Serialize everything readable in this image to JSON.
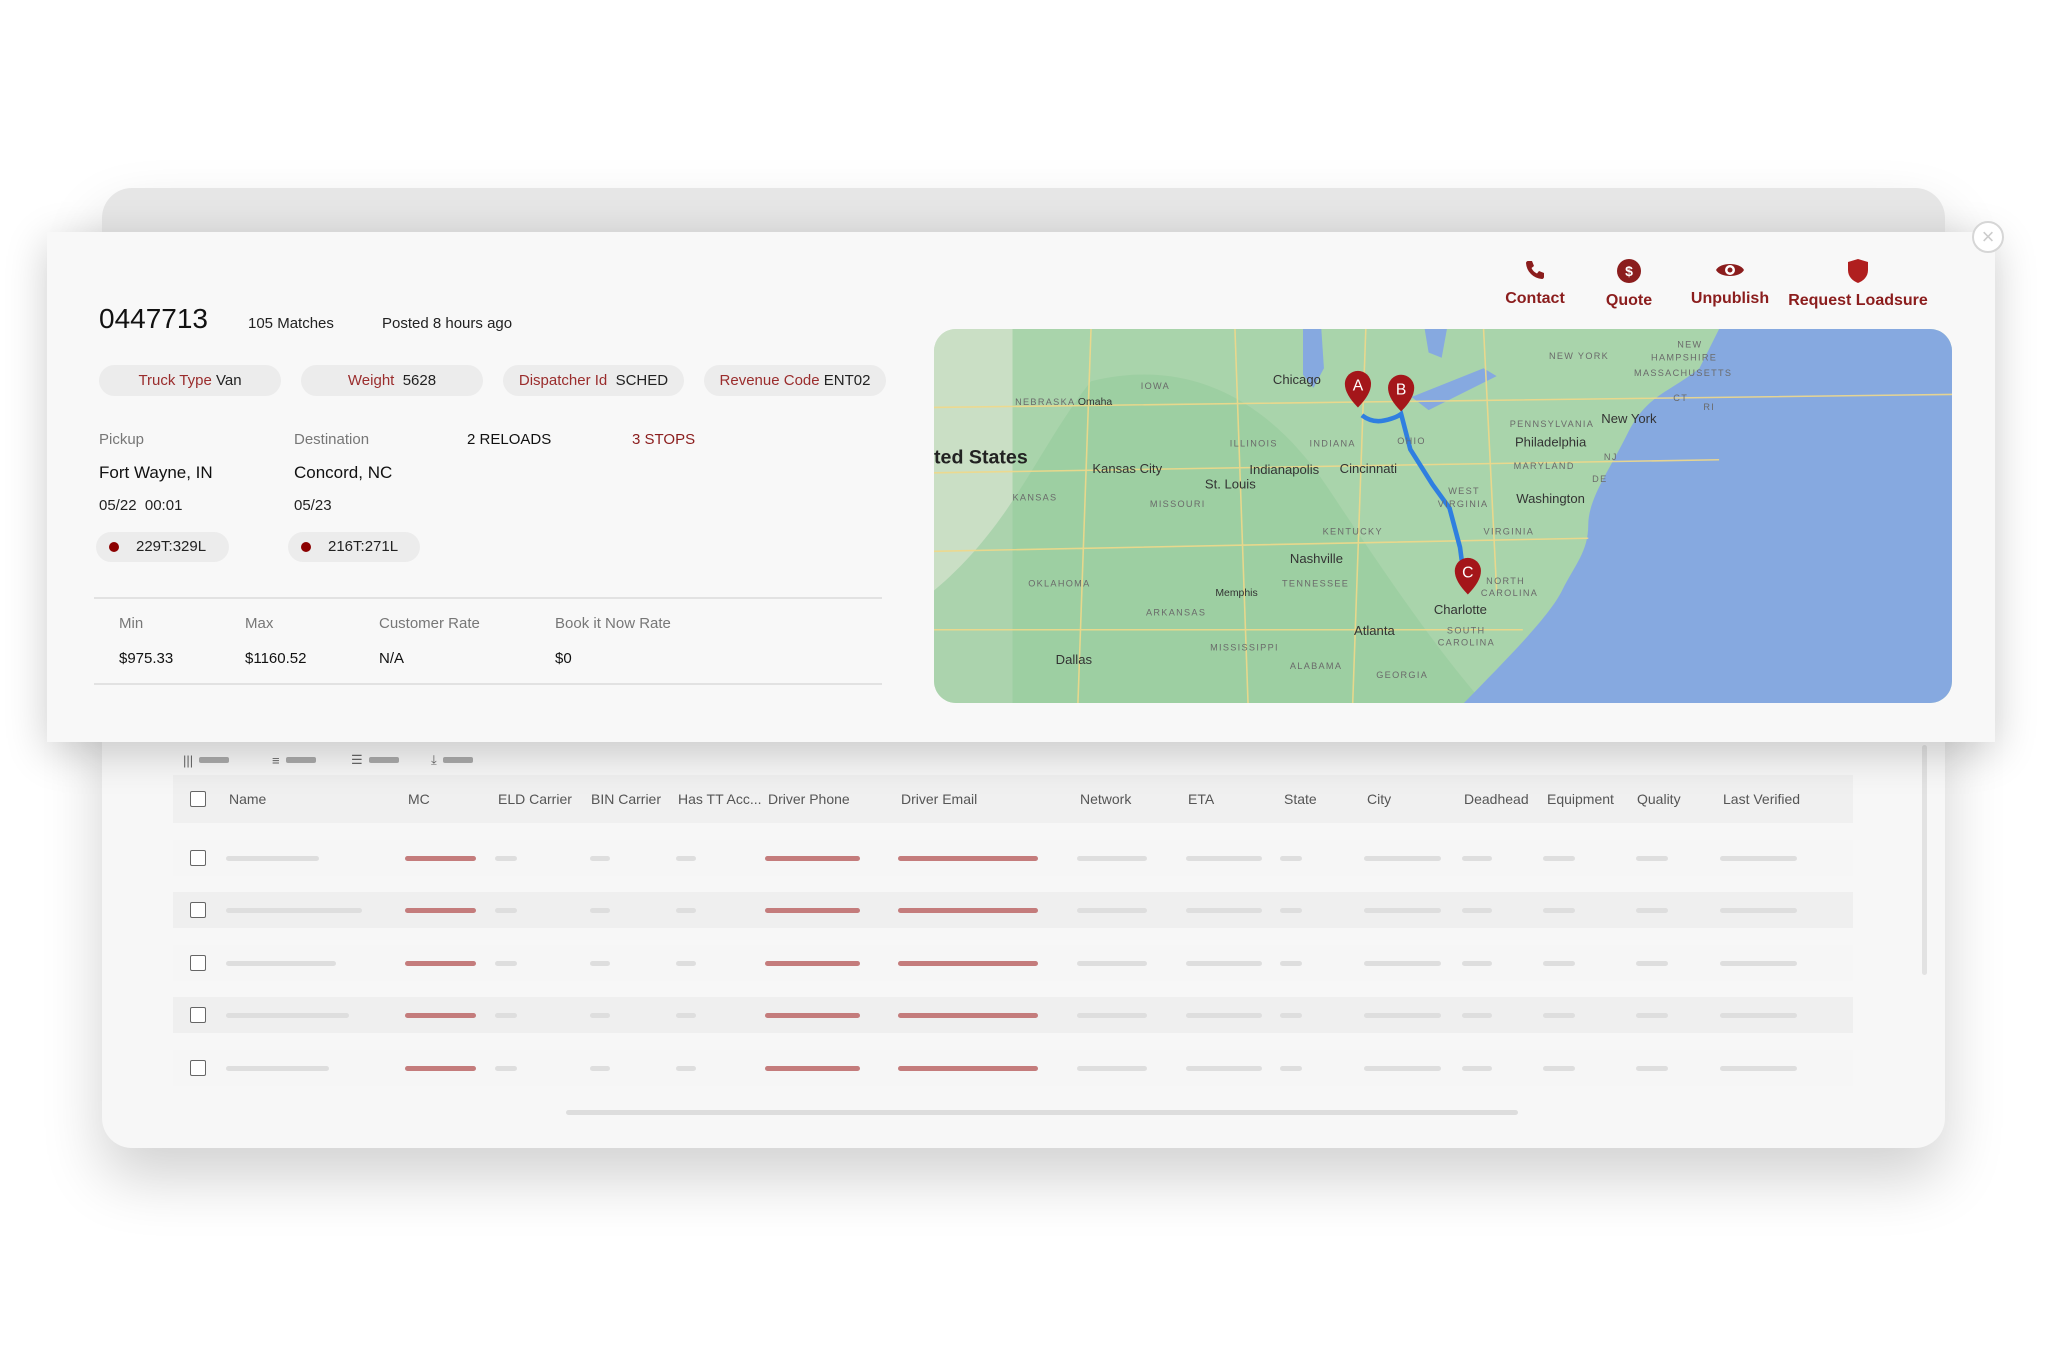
{
  "load": {
    "id": "0447713",
    "matches": "105 Matches",
    "posted": "Posted 8 hours ago",
    "chips": [
      {
        "key": "Truck Type",
        "value": "Van"
      },
      {
        "key": "Weight",
        "value": "5628"
      },
      {
        "key": "Dispatcher Id",
        "value": "SCHED"
      },
      {
        "key": "Revenue Code",
        "value": "ENT02"
      }
    ],
    "pickup": {
      "label": "Pickup",
      "city": "Fort Wayne, IN",
      "date": "05/22  00:01",
      "tag": "229T:329L"
    },
    "destination": {
      "label": "Destination",
      "city": "Concord, NC",
      "date": "05/23",
      "tag": "216T:271L"
    },
    "reloads": "2 RELOADS",
    "stops": "3 STOPS",
    "rates": [
      {
        "label": "Min",
        "value": "$975.33"
      },
      {
        "label": "Max",
        "value": "$1160.52"
      },
      {
        "label": "Customer Rate",
        "value": "N/A"
      },
      {
        "label": "Book it Now Rate",
        "value": "$0"
      }
    ]
  },
  "actions": [
    {
      "label": "Contact",
      "icon": "phone-icon"
    },
    {
      "label": "Quote",
      "icon": "dollar-icon"
    },
    {
      "label": "Unpublish",
      "icon": "eye-icon"
    },
    {
      "label": "Request Loadsure",
      "icon": "shield-icon"
    }
  ],
  "accent_color": "#8b1d1d",
  "map": {
    "country_label": "ted States",
    "labels": {
      "nebraska": "NEBRASKA",
      "iowa": "IOWA",
      "omaha": "Omaha",
      "chicago": "Chicago",
      "illinois": "ILLINOIS",
      "indiana": "INDIANA",
      "ohio": "OHIO",
      "indianapolis": "Indianapolis",
      "cincinnati": "Cincinnati",
      "kansas_city": "Kansas City",
      "st_louis": "St. Louis",
      "kansas": "KANSAS",
      "missouri": "MISSOURI",
      "west": "WEST",
      "virginia_w": "VIRGINIA",
      "new_york_state": "NEW YORK",
      "new": "NEW",
      "hampshire": "HAMPSHIRE",
      "massachusetts": "MASSACHUSETTS",
      "pennsylvania": "PENNSYLVANIA",
      "new_york": "New York",
      "philadelphia": "Philadelphia",
      "maryland": "MARYLAND",
      "washington": "Washington",
      "virginia": "VIRGINIA",
      "kentucky": "KENTUCKY",
      "nashville": "Nashville",
      "tennessee": "TENNESSEE",
      "oklahoma": "OKLAHOMA",
      "memphis": "Memphis",
      "arkansas": "ARKANSAS",
      "north": "NORTH",
      "carolina_n": "CAROLINA",
      "charlotte": "Charlotte",
      "atlanta": "Atlanta",
      "south": "SOUTH",
      "carolina_s": "CAROLINA",
      "mississippi": "MISSISSIPPI",
      "alabama": "ALABAMA",
      "georgia": "GEORGIA",
      "dallas": "Dallas",
      "nj": "NJ",
      "de": "DE",
      "ct": "CT",
      "ri": "RI"
    },
    "markers": [
      "A",
      "B",
      "C"
    ]
  },
  "table": {
    "toolbar": [
      "columns-icon",
      "filter-icon",
      "density-icon",
      "export-icon"
    ],
    "columns": [
      "Name",
      "MC",
      "ELD Carrier",
      "BIN Carrier",
      "Has TT Acc...",
      "Driver Phone",
      "Driver Email",
      "Network",
      "ETA",
      "State",
      "City",
      "Deadhead",
      "Equipment",
      "Quality",
      "Last Verified"
    ]
  }
}
